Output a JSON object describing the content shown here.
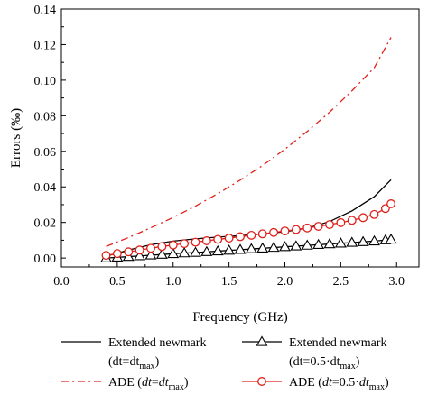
{
  "chart_data": {
    "type": "line",
    "title": "",
    "xlabel": "Frequency (GHz)",
    "ylabel": "Errors (‰)",
    "xlim": [
      0.0,
      3.2
    ],
    "ylim": [
      -0.005,
      0.14
    ],
    "x_ticks": [
      "0.0",
      "0.5",
      "1.0",
      "1.5",
      "2.0",
      "2.5",
      "3.0"
    ],
    "y_ticks": [
      "0.00",
      "0.02",
      "0.04",
      "0.06",
      "0.08",
      "0.10",
      "0.12",
      "0.14"
    ],
    "grid": false,
    "legend_position": "bottom",
    "series": [
      {
        "name": "Extended newmark (dt=dt_max)",
        "legend_line1": "Extended newmark",
        "legend_line2": "(dt=dt",
        "legend_line2_sub": "max",
        "legend_line2_end": ")",
        "style": "solid",
        "color": "#000000",
        "marker": "none",
        "x": [
          0.4,
          0.6,
          0.8,
          1.0,
          1.2,
          1.4,
          1.6,
          1.8,
          2.0,
          2.2,
          2.4,
          2.6,
          2.8,
          2.95
        ],
        "values": [
          0.001,
          0.0045,
          0.0075,
          0.0095,
          0.0108,
          0.0118,
          0.0126,
          0.0135,
          0.0148,
          0.0168,
          0.0205,
          0.0265,
          0.0345,
          0.044
        ]
      },
      {
        "name": "Extended newmark (dt=0.5·dt_max)",
        "legend_line1": "Extended newmark",
        "legend_line2": "(dt=0.5·dt",
        "legend_line2_sub": "max",
        "legend_line2_end": ")",
        "style": "solid",
        "color": "#000000",
        "marker": "triangle",
        "x": [
          0.4,
          0.5,
          0.6,
          0.7,
          0.8,
          0.9,
          1.0,
          1.1,
          1.2,
          1.3,
          1.4,
          1.5,
          1.6,
          1.7,
          1.8,
          1.9,
          2.0,
          2.1,
          2.2,
          2.3,
          2.4,
          2.5,
          2.6,
          2.7,
          2.8,
          2.9,
          2.95
        ],
        "values": [
          0.0,
          0.0004,
          0.0008,
          0.0012,
          0.0016,
          0.002,
          0.0024,
          0.0028,
          0.0031,
          0.0035,
          0.0039,
          0.0043,
          0.0047,
          0.0051,
          0.0055,
          0.0059,
          0.0063,
          0.0067,
          0.0071,
          0.0075,
          0.0079,
          0.0083,
          0.0087,
          0.0091,
          0.0095,
          0.0101,
          0.0105
        ]
      },
      {
        "name": "ADE (dt=dt_max)",
        "legend_line1": "ADE (",
        "legend_ital": "dt",
        "legend_mid": "=",
        "legend_ital2": "dt",
        "legend_sub": "max",
        "legend_end": ")",
        "style": "dashdot",
        "color": "#e0201b",
        "marker": "none",
        "x": [
          0.4,
          0.6,
          0.8,
          1.0,
          1.2,
          1.4,
          1.6,
          1.8,
          2.0,
          2.2,
          2.4,
          2.6,
          2.8,
          2.95
        ],
        "values": [
          0.0065,
          0.0115,
          0.017,
          0.0228,
          0.0292,
          0.0362,
          0.0438,
          0.052,
          0.0612,
          0.0712,
          0.082,
          0.094,
          0.107,
          0.124
        ]
      },
      {
        "name": "ADE (dt=0.5·dt_max)",
        "legend_line1": "ADE (",
        "legend_ital": "dt",
        "legend_mid": "=0.5·",
        "legend_ital2": "dt",
        "legend_sub": "max",
        "legend_end": ")",
        "style": "solid",
        "color": "#e0201b",
        "marker": "circle",
        "x": [
          0.4,
          0.5,
          0.6,
          0.7,
          0.8,
          0.9,
          1.0,
          1.1,
          1.2,
          1.3,
          1.4,
          1.5,
          1.6,
          1.7,
          1.8,
          1.9,
          2.0,
          2.1,
          2.2,
          2.3,
          2.4,
          2.5,
          2.6,
          2.7,
          2.8,
          2.9,
          2.95
        ],
        "values": [
          0.0015,
          0.0025,
          0.0035,
          0.0045,
          0.0055,
          0.0065,
          0.0073,
          0.0081,
          0.0089,
          0.0097,
          0.0105,
          0.0112,
          0.012,
          0.0128,
          0.0136,
          0.0144,
          0.0152,
          0.016,
          0.0169,
          0.0178,
          0.0188,
          0.0199,
          0.0212,
          0.0227,
          0.0245,
          0.0278,
          0.0305
        ]
      }
    ]
  }
}
